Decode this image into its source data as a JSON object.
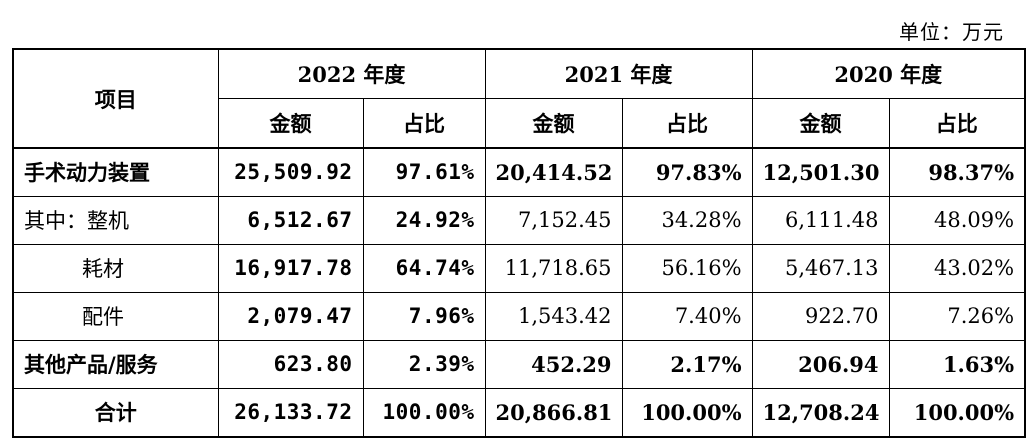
{
  "unit_label": "单位：万元",
  "header": {
    "item_label": "项目",
    "years": [
      "2022 年度",
      "2021 年度",
      "2020 年度"
    ],
    "amount_label": "金额",
    "ratio_label": "占比"
  },
  "rows": [
    {
      "label": "手术动力装置",
      "v": [
        "25,509.92",
        "97.61%",
        "20,414.52",
        "97.83%",
        "12,501.30",
        "98.37%"
      ]
    },
    {
      "label": "其中：整机",
      "v": [
        "6,512.67",
        "24.92%",
        "7,152.45",
        "34.28%",
        "6,111.48",
        "48.09%"
      ]
    },
    {
      "label": "耗材",
      "v": [
        "16,917.78",
        "64.74%",
        "11,718.65",
        "56.16%",
        "5,467.13",
        "43.02%"
      ]
    },
    {
      "label": "配件",
      "v": [
        "2,079.47",
        "7.96%",
        "1,543.42",
        "7.40%",
        "922.70",
        "7.26%"
      ]
    },
    {
      "label": "其他产品/服务",
      "v": [
        "623.80",
        "2.39%",
        "452.29",
        "2.17%",
        "206.94",
        "1.63%"
      ]
    },
    {
      "label": "合计",
      "v": [
        "26,133.72",
        "100.00%",
        "20,866.81",
        "100.00%",
        "12,708.24",
        "100.00%"
      ]
    }
  ]
}
